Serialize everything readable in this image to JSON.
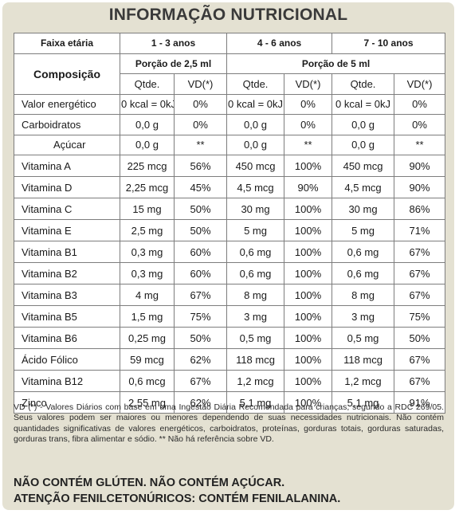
{
  "title": "INFORMAÇÃO NUTRICIONAL",
  "header": {
    "age_label": "Faixa etária",
    "age_groups": [
      "1 - 3 anos",
      "4 - 6 anos",
      "7 - 10 anos"
    ],
    "composition_label": "Composição",
    "portions": [
      "Porção de 2,5 ml",
      "Porção de 5 ml"
    ],
    "qty_label": "Qtde.",
    "vd_label": "VD(*)"
  },
  "rows": [
    {
      "name": "Valor energético",
      "v": [
        "0 kcal = 0kJ",
        "0%",
        "0 kcal = 0kJ",
        "0%",
        "0 kcal = 0kJ",
        "0%"
      ]
    },
    {
      "name": "Carboidratos",
      "v": [
        "0,0 g",
        "0%",
        "0,0 g",
        "0%",
        "0,0 g",
        "0%"
      ]
    },
    {
      "name": "Açúcar",
      "v": [
        "0,0 g",
        "**",
        "0,0 g",
        "**",
        "0,0 g",
        "**"
      ]
    },
    {
      "name": "Vitamina A",
      "v": [
        "225 mcg",
        "56%",
        "450 mcg",
        "100%",
        "450 mcg",
        "90%"
      ]
    },
    {
      "name": "Vitamina D",
      "v": [
        "2,25 mcg",
        "45%",
        "4,5 mcg",
        "90%",
        "4,5 mcg",
        "90%"
      ]
    },
    {
      "name": "Vitamina C",
      "v": [
        "15 mg",
        "50%",
        "30 mg",
        "100%",
        "30 mg",
        "86%"
      ]
    },
    {
      "name": "Vitamina E",
      "v": [
        "2,5 mg",
        "50%",
        "5 mg",
        "100%",
        "5 mg",
        "71%"
      ]
    },
    {
      "name": "Vitamina B1",
      "v": [
        "0,3 mg",
        "60%",
        "0,6 mg",
        "100%",
        "0,6 mg",
        "67%"
      ]
    },
    {
      "name": "Vitamina B2",
      "v": [
        "0,3 mg",
        "60%",
        "0,6 mg",
        "100%",
        "0,6 mg",
        "67%"
      ]
    },
    {
      "name": "Vitamina B3",
      "v": [
        "4 mg",
        "67%",
        "8 mg",
        "100%",
        "8 mg",
        "67%"
      ]
    },
    {
      "name": "Vitamina B5",
      "v": [
        "1,5 mg",
        "75%",
        "3 mg",
        "100%",
        "3 mg",
        "75%"
      ]
    },
    {
      "name": "Vitamina B6",
      "v": [
        "0,25 mg",
        "50%",
        "0,5 mg",
        "100%",
        "0,5 mg",
        "50%"
      ]
    },
    {
      "name": "Ácido Fólico",
      "v": [
        "59 mcg",
        "62%",
        "118 mcg",
        "100%",
        "118 mcg",
        "67%"
      ]
    },
    {
      "name": "Vitamina B12",
      "v": [
        "0,6 mcg",
        "67%",
        "1,2 mcg",
        "100%",
        "1,2 mcg",
        "67%"
      ]
    },
    {
      "name": "Zinco",
      "v": [
        "2,55 mg",
        "62%",
        "5,1 mg",
        "100%",
        "5,1 mg",
        "91%"
      ]
    }
  ],
  "footnote": "VD (*) - Valores Diários com base em uma Ingestão Diária Recomendada para crianças, segundo a RDC 269/05. Seus valores podem ser maiores ou menores dependendo de suas necessidades nutricionais. Não contém quantidades significativas de valores energéticos, carboidratos, proteínas, gorduras totais, gorduras saturadas, gorduras trans, fibra alimentar e sódio. ** Não há referência sobre VD.",
  "warnings": [
    "NÃO CONTÉM GLÚTEN. NÃO CONTÉM AÇÚCAR.",
    "ATENÇÃO FENILCETONÚRICOS: CONTÉM FENILALANINA."
  ]
}
